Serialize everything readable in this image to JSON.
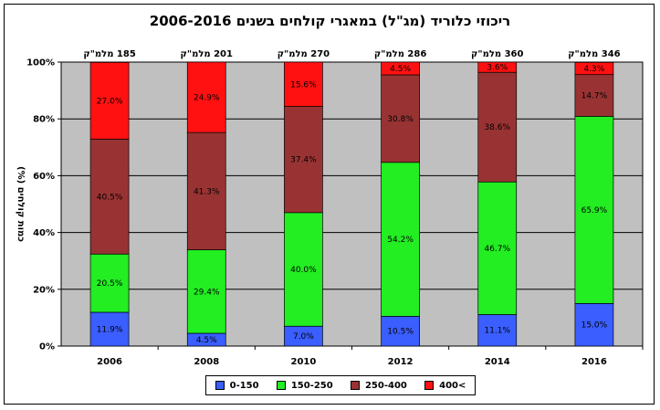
{
  "chart_data": {
    "type": "bar",
    "stacked": true,
    "title": "ריכוזי כלוריד (מג\"ל) במאגרי קולחים בשנים 2006-2016",
    "ylabel": "כמות קולחים (%)",
    "xlabel": "",
    "ylim": [
      0,
      100
    ],
    "y_ticks": [
      "0%",
      "20%",
      "40%",
      "60%",
      "80%",
      "100%"
    ],
    "categories": [
      "2006",
      "2008",
      "2010",
      "2012",
      "2014",
      "2016"
    ],
    "top_labels": [
      "185 מלמ\"ק",
      "201 מלמ\"ק",
      "270 מלמ\"ק",
      "286 מלמ\"ק",
      "360 מלמ\"ק",
      "346 מלמ\"ק"
    ],
    "series": [
      {
        "name": "0-150",
        "color": "#3a5eff",
        "values": [
          11.9,
          4.5,
          7.0,
          10.5,
          11.1,
          15.0
        ],
        "labels": [
          "11.9%",
          "4.5%",
          "7.0%",
          "10.5%",
          "11.1%",
          "15.0%"
        ]
      },
      {
        "name": "150-250",
        "color": "#22ee22",
        "values": [
          20.5,
          29.4,
          40.0,
          54.2,
          46.7,
          65.9
        ],
        "labels": [
          "20.5%",
          "29.4%",
          "40.0%",
          "54.2%",
          "46.7%",
          "65.9%"
        ]
      },
      {
        "name": "250-400",
        "color": "#993333",
        "values": [
          40.5,
          41.3,
          37.4,
          30.8,
          38.6,
          14.7
        ],
        "labels": [
          "40.5%",
          "41.3%",
          "37.4%",
          "30.8%",
          "38.6%",
          "14.7%"
        ]
      },
      {
        "name": "400<",
        "color": "#ff1111",
        "values": [
          27.0,
          24.9,
          15.6,
          4.5,
          3.6,
          4.3
        ],
        "labels": [
          "27.0%",
          "24.9%",
          "15.6%",
          "4.5%",
          "3.6%",
          "4.3%"
        ]
      }
    ],
    "grid": true,
    "plot_background": "#c0c0c0",
    "legend_position": "bottom"
  }
}
